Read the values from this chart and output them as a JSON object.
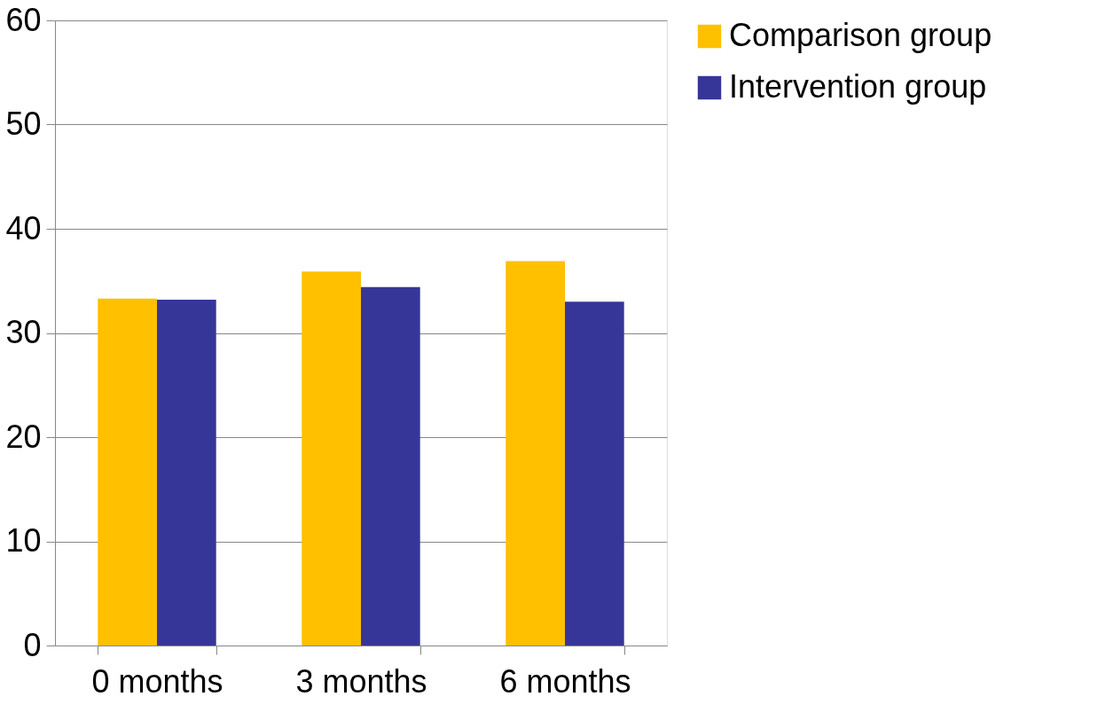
{
  "chart_data": {
    "type": "bar",
    "categories": [
      "0 months",
      "3 months",
      "6 months"
    ],
    "series": [
      {
        "name": "Comparison group",
        "color": "#ffc000",
        "values": [
          33.3,
          35.9,
          36.9
        ]
      },
      {
        "name": "Intervention group",
        "color": "#363699",
        "values": [
          33.2,
          34.4,
          33.0
        ]
      }
    ],
    "ylim": [
      0,
      60
    ],
    "yticks": [
      0,
      10,
      20,
      30,
      40,
      50,
      60
    ],
    "grid": "y",
    "legend": "right"
  }
}
